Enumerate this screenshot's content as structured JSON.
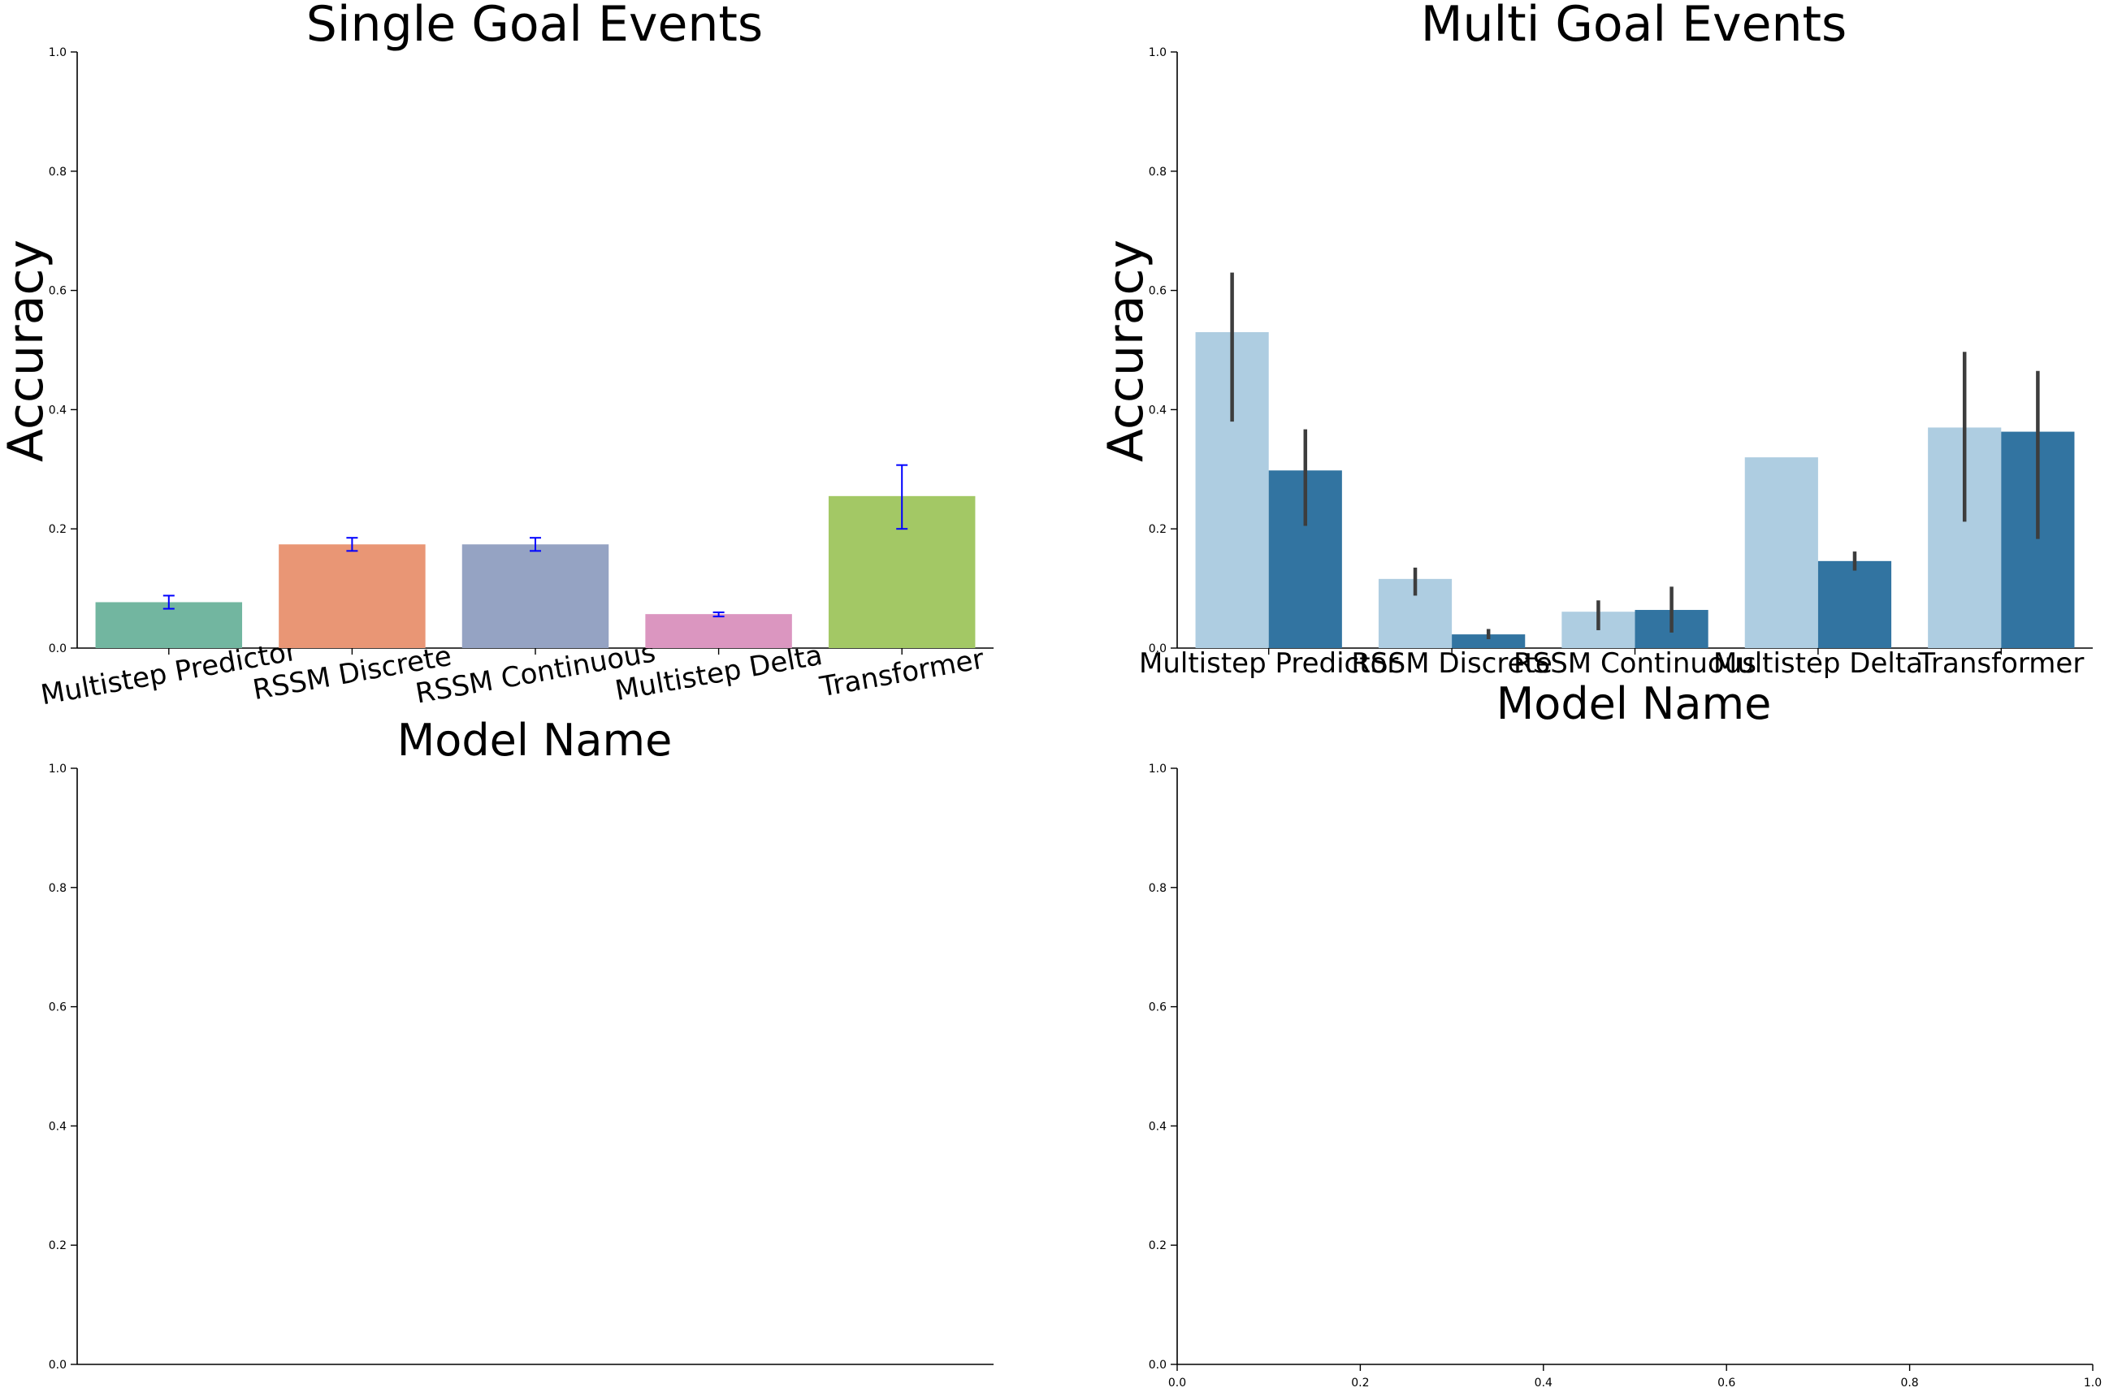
{
  "chart_data": [
    {
      "type": "bar",
      "title": "Single Goal Events",
      "xlabel": "Model Name",
      "ylabel": "Accuracy",
      "ylim": [
        0,
        1
      ],
      "yticks": [
        "0.0",
        "0.2",
        "0.4",
        "0.6",
        "0.8",
        "1.0"
      ],
      "categories": [
        "Multistep Predictor",
        "RSSM Discrete",
        "RSSM Continuous",
        "Multistep Delta",
        "Transformer"
      ],
      "values": [
        0.077,
        0.174,
        0.174,
        0.057,
        0.255
      ],
      "errors": [
        [
          0.066,
          0.088
        ],
        [
          0.163,
          0.185
        ],
        [
          0.163,
          0.185
        ],
        [
          0.053,
          0.06
        ],
        [
          0.2,
          0.307
        ]
      ],
      "colors": [
        "#72b6a0",
        "#e99675",
        "#95a3c3",
        "#db96c0",
        "#a3c865"
      ],
      "error_color": "#0000ff",
      "xtick_rotation": -10,
      "grid": false
    },
    {
      "type": "bar",
      "title": "Multi Goal Events",
      "xlabel": "Model Name",
      "ylabel": "Accuracy",
      "ylim": [
        0,
        1
      ],
      "yticks": [
        "0.0",
        "0.2",
        "0.4",
        "0.6",
        "0.8",
        "1.0"
      ],
      "categories": [
        "Multistep Predictor",
        "RSSM Discrete",
        "RSSM Continuous",
        "Multistep Delta",
        "Transformer"
      ],
      "series": [
        {
          "color": "#aecde1",
          "values": [
            0.53,
            0.116,
            0.061,
            0.32,
            0.37
          ],
          "errors": [
            [
              0.38,
              0.63
            ],
            [
              0.088,
              0.135
            ],
            [
              0.03,
              0.08
            ],
            null,
            [
              0.212,
              0.497
            ]
          ]
        },
        {
          "color": "#3274a1",
          "values": [
            0.298,
            0.023,
            0.064,
            0.146,
            0.363
          ],
          "errors": [
            [
              0.205,
              0.367
            ],
            [
              0.015,
              0.032
            ],
            [
              0.026,
              0.103
            ],
            [
              0.13,
              0.162
            ],
            [
              0.183,
              0.465
            ]
          ]
        }
      ],
      "error_color": "#3d3d3d",
      "grid": false
    },
    {
      "type": "bar",
      "title": "",
      "xlabel": "",
      "ylabel": "",
      "ylim": [
        0,
        1
      ],
      "yticks": [
        "0.0",
        "0.2",
        "0.4",
        "0.6",
        "0.8",
        "1.0"
      ],
      "xticks": [],
      "categories": [],
      "values": [],
      "grid": false
    },
    {
      "type": "bar",
      "title": "",
      "xlabel": "",
      "ylabel": "",
      "ylim": [
        0,
        1
      ],
      "yticks": [
        "0.0",
        "0.2",
        "0.4",
        "0.6",
        "0.8",
        "1.0"
      ],
      "xlim": [
        0,
        1
      ],
      "xticks": [
        "0.0",
        "0.2",
        "0.4",
        "0.6",
        "0.8",
        "1.0"
      ],
      "categories": [],
      "values": [],
      "grid": false
    }
  ]
}
